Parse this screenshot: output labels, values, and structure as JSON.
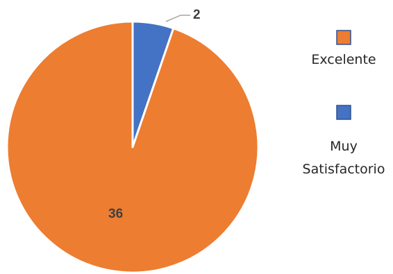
{
  "chart_data": {
    "type": "pie",
    "title": "",
    "slices": [
      {
        "label": "Muy Satisfactorio",
        "value": 2,
        "color": "#4472C4"
      },
      {
        "label": "Excelente",
        "value": 36,
        "color": "#ED7D31"
      }
    ],
    "data_labels": [
      "2",
      "36"
    ],
    "legend": {
      "placement": "right",
      "entries": [
        {
          "label": "Excelente",
          "color": "#ED7D31"
        },
        {
          "label": "Muy Satisfactorio",
          "label_lines": [
            "Muy",
            "Satisfactorio"
          ],
          "color": "#4472C4"
        }
      ]
    }
  }
}
